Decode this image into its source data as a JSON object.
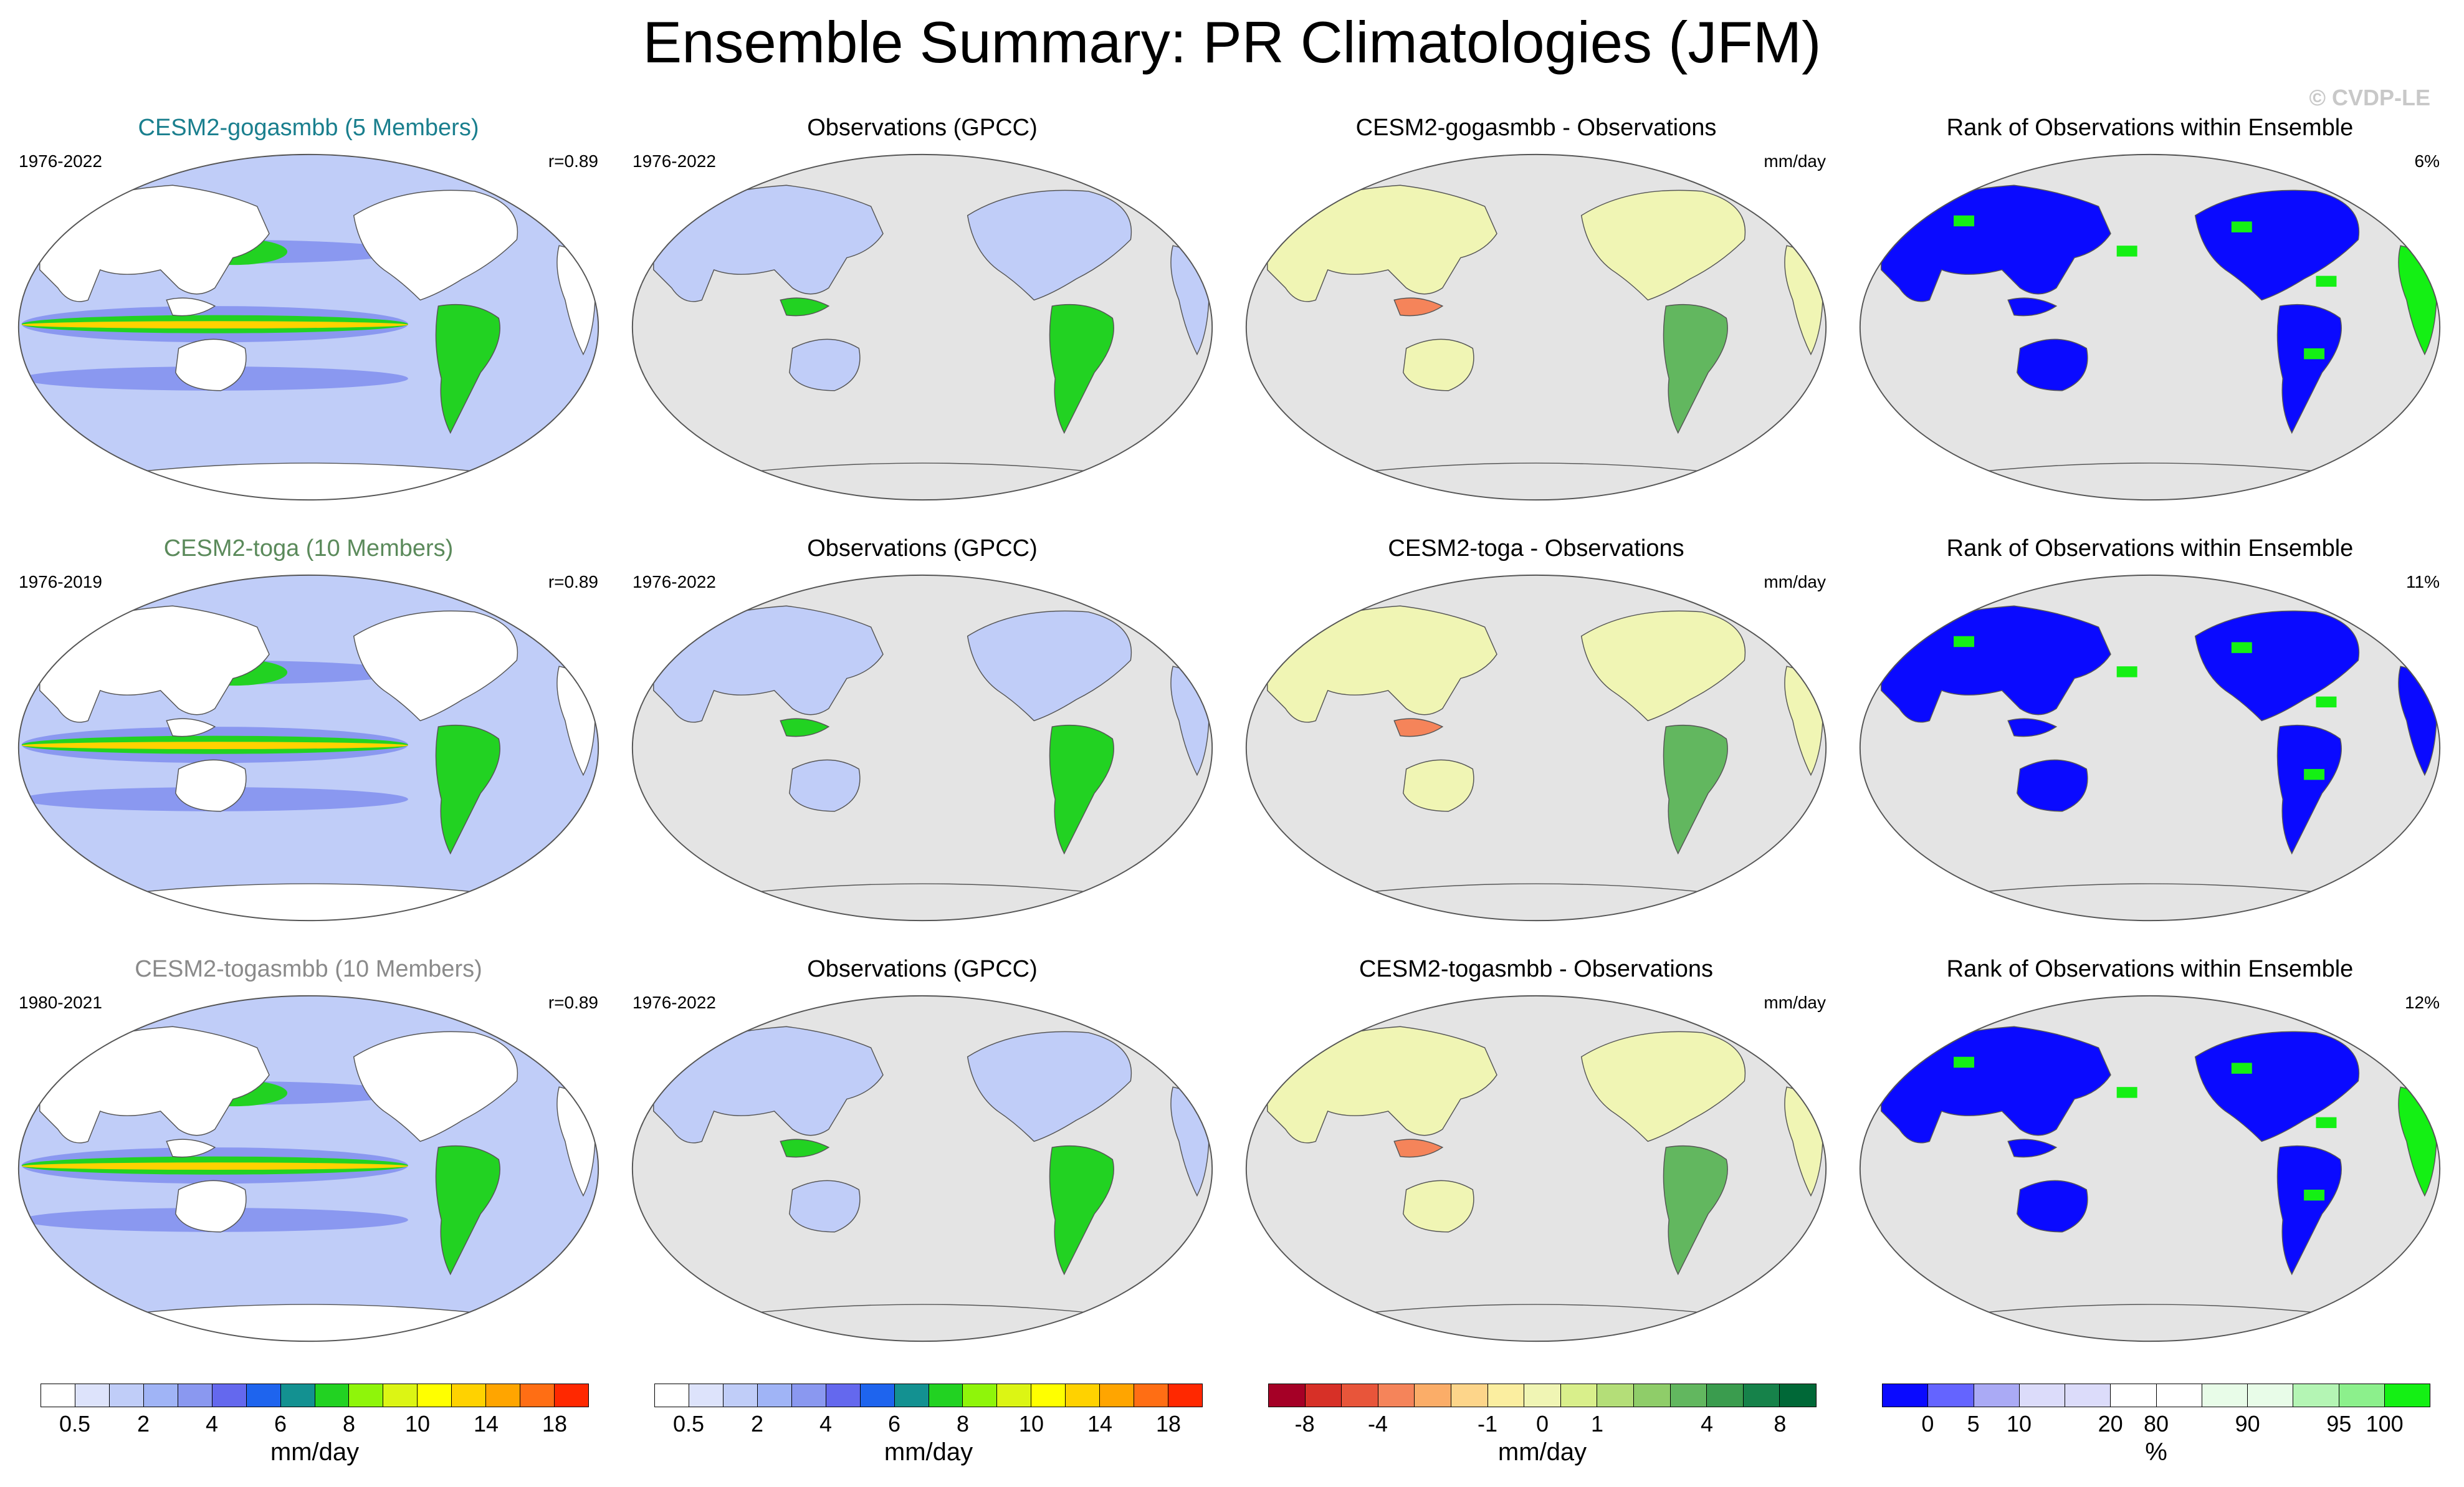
{
  "title": "Ensemble Summary: PR Climatologies (JFM)",
  "watermark": "© CVDP-LE",
  "rows": [
    {
      "model": {
        "title": "CESM2-gogasmbb (5 Members)",
        "title_color": "#1a7f8e",
        "years": "1976-2022",
        "corr": "r=0.89"
      },
      "obs": {
        "title": "Observations (GPCC)",
        "years": "1976-2022"
      },
      "diff": {
        "title": "CESM2-gogasmbb - Observations",
        "units": "mm/day"
      },
      "rank": {
        "title": "Rank of Observations within Ensemble",
        "pct": "6%"
      }
    },
    {
      "model": {
        "title": "CESM2-toga (10 Members)",
        "title_color": "#5b8a5b",
        "years": "1976-2019",
        "corr": "r=0.89"
      },
      "obs": {
        "title": "Observations (GPCC)",
        "years": "1976-2022"
      },
      "diff": {
        "title": "CESM2-toga - Observations",
        "units": "mm/day"
      },
      "rank": {
        "title": "Rank of Observations within Ensemble",
        "pct": "11%"
      }
    },
    {
      "model": {
        "title": "CESM2-togasmbb (10 Members)",
        "title_color": "#8a8a8a",
        "years": "1980-2021",
        "corr": "r=0.89"
      },
      "obs": {
        "title": "Observations (GPCC)",
        "years": "1976-2022"
      },
      "diff": {
        "title": "CESM2-togasmbb - Observations",
        "units": "mm/day"
      },
      "rank": {
        "title": "Rank of Observations within Ensemble",
        "pct": "12%"
      }
    }
  ],
  "colorbars": [
    {
      "colors": [
        "#ffffff",
        "#dde3fb",
        "#c0cdf8",
        "#a0b4f6",
        "#8a98f0",
        "#6468ee",
        "#1e64ee",
        "#139191",
        "#22d222",
        "#8ff50a",
        "#dcf514",
        "#ffff00",
        "#ffd200",
        "#ffa500",
        "#ff6e14",
        "#ff2800"
      ],
      "ticks": [
        "0.5",
        "2",
        "4",
        "6",
        "8",
        "10",
        "14",
        "18"
      ],
      "unit": "mm/day"
    },
    {
      "colors": [
        "#ffffff",
        "#dde3fb",
        "#c0cdf8",
        "#a0b4f6",
        "#8a98f0",
        "#6468ee",
        "#1e64ee",
        "#139191",
        "#22d222",
        "#8ff50a",
        "#dcf514",
        "#ffff00",
        "#ffd200",
        "#ffa500",
        "#ff6e14",
        "#ff2800"
      ],
      "ticks": [
        "0.5",
        "2",
        "4",
        "6",
        "8",
        "10",
        "14",
        "18"
      ],
      "unit": "mm/day"
    },
    {
      "colors": [
        "#a50026",
        "#d73027",
        "#e8553a",
        "#f5845a",
        "#fbad68",
        "#fdd58a",
        "#fbeea0",
        "#f0f5b4",
        "#d9ef8b",
        "#b4de78",
        "#8fcd69",
        "#62b75f",
        "#3a9c4e",
        "#16824a",
        "#006837"
      ],
      "ticks": [
        "-8",
        "-4",
        "-1",
        "0",
        "1",
        "4",
        "8"
      ],
      "unit": "mm/day"
    },
    {
      "colors": [
        "#0a0aff",
        "#6464ff",
        "#aaaaf5",
        "#dcdcfa",
        "#dcdcfa",
        "#ffffff",
        "#ffffff",
        "#e8fce8",
        "#e8fce8",
        "#b4f5b4",
        "#8cf08c",
        "#14f014"
      ],
      "ticks": [
        "0",
        "5",
        "10",
        "20",
        "80",
        "90",
        "95",
        "100"
      ],
      "unit": "%"
    }
  ],
  "map_colors": {
    "ocean": "#e4e4e4",
    "land_model": "#ffffff",
    "pr_light": "#c0cdf8",
    "pr_mid": "#8a98f0",
    "pr_heavy": "#22d222",
    "pr_max": "#ffd200",
    "diff_land": "#f0f5b4",
    "diff_wet": "#62b75f",
    "diff_dry": "#f5845a",
    "rank_low": "#0a0aff",
    "rank_high": "#14f014"
  }
}
